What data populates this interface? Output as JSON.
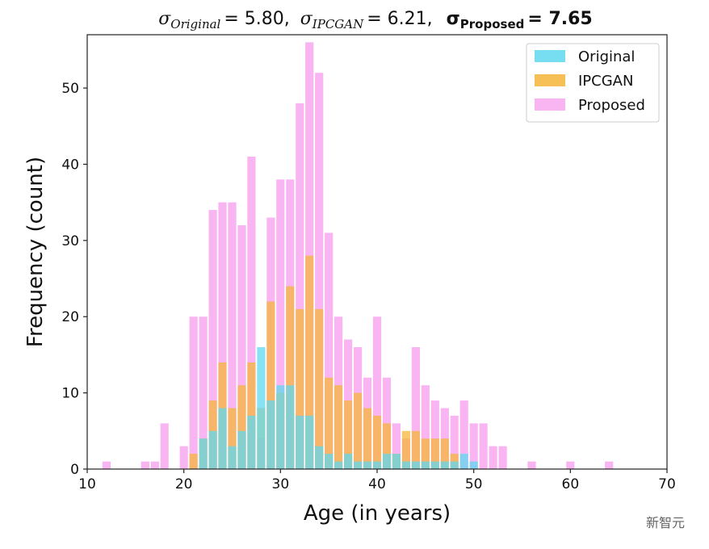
{
  "chart_data": {
    "type": "bar",
    "title": {
      "original_label": "σ",
      "original_sub": "Original",
      "original_value": "= 5.80,",
      "ipcgan_label": "σ",
      "ipcgan_sub": "IPCGAN",
      "ipcgan_value": "= 6.21,",
      "proposed_label": "σ",
      "proposed_sub": "Proposed",
      "proposed_value": "= 7.65"
    },
    "xlabel": "Age (in years)",
    "ylabel": "Frequency (count)",
    "xlim": [
      10,
      70
    ],
    "ylim": [
      0,
      57
    ],
    "xticks": [
      10,
      20,
      30,
      40,
      50,
      60,
      70
    ],
    "yticks": [
      0,
      10,
      20,
      30,
      40,
      50
    ],
    "legend_position": "top-right",
    "bin_width": 0.85,
    "series": [
      {
        "name": "Proposed",
        "color": "#f7a8f0",
        "x": [
          12,
          16,
          17,
          18,
          20,
          21,
          22,
          23,
          24,
          25,
          26,
          27,
          28,
          29,
          30,
          31,
          32,
          33,
          34,
          35,
          36,
          37,
          38,
          39,
          40,
          41,
          42,
          43,
          44,
          45,
          46,
          47,
          48,
          49,
          50,
          51,
          52,
          53,
          56,
          60,
          64
        ],
        "values": [
          1,
          1,
          1,
          6,
          3,
          20,
          20,
          34,
          35,
          35,
          32,
          41,
          4,
          33,
          38,
          38,
          48,
          56,
          52,
          31,
          20,
          17,
          16,
          12,
          20,
          12,
          6,
          4,
          16,
          11,
          9,
          8,
          7,
          9,
          6,
          6,
          3,
          3,
          1,
          1,
          1
        ]
      },
      {
        "name": "IPCGAN",
        "color": "#f5b53a",
        "x": [
          21,
          22,
          23,
          24,
          25,
          26,
          27,
          28,
          29,
          30,
          31,
          32,
          33,
          34,
          35,
          36,
          37,
          38,
          39,
          40,
          41,
          42,
          43,
          44,
          45,
          46,
          47,
          48
        ],
        "values": [
          2,
          4,
          9,
          14,
          8,
          11,
          14,
          8,
          22,
          10,
          24,
          21,
          28,
          21,
          12,
          11,
          9,
          10,
          8,
          7,
          6,
          2,
          5,
          5,
          4,
          4,
          4,
          2
        ]
      },
      {
        "name": "Original",
        "color": "#5fd8f0",
        "x": [
          22,
          23,
          24,
          25,
          26,
          27,
          28,
          29,
          30,
          31,
          32,
          33,
          34,
          35,
          36,
          37,
          38,
          39,
          40,
          41,
          42,
          43,
          44,
          45,
          46,
          47,
          48,
          49,
          50
        ],
        "values": [
          4,
          5,
          8,
          3,
          5,
          7,
          16,
          9,
          11,
          11,
          7,
          7,
          3,
          2,
          1,
          2,
          1,
          1,
          1,
          2,
          2,
          1,
          1,
          1,
          1,
          1,
          1,
          2,
          1
        ]
      }
    ]
  },
  "watermark": "新智元"
}
